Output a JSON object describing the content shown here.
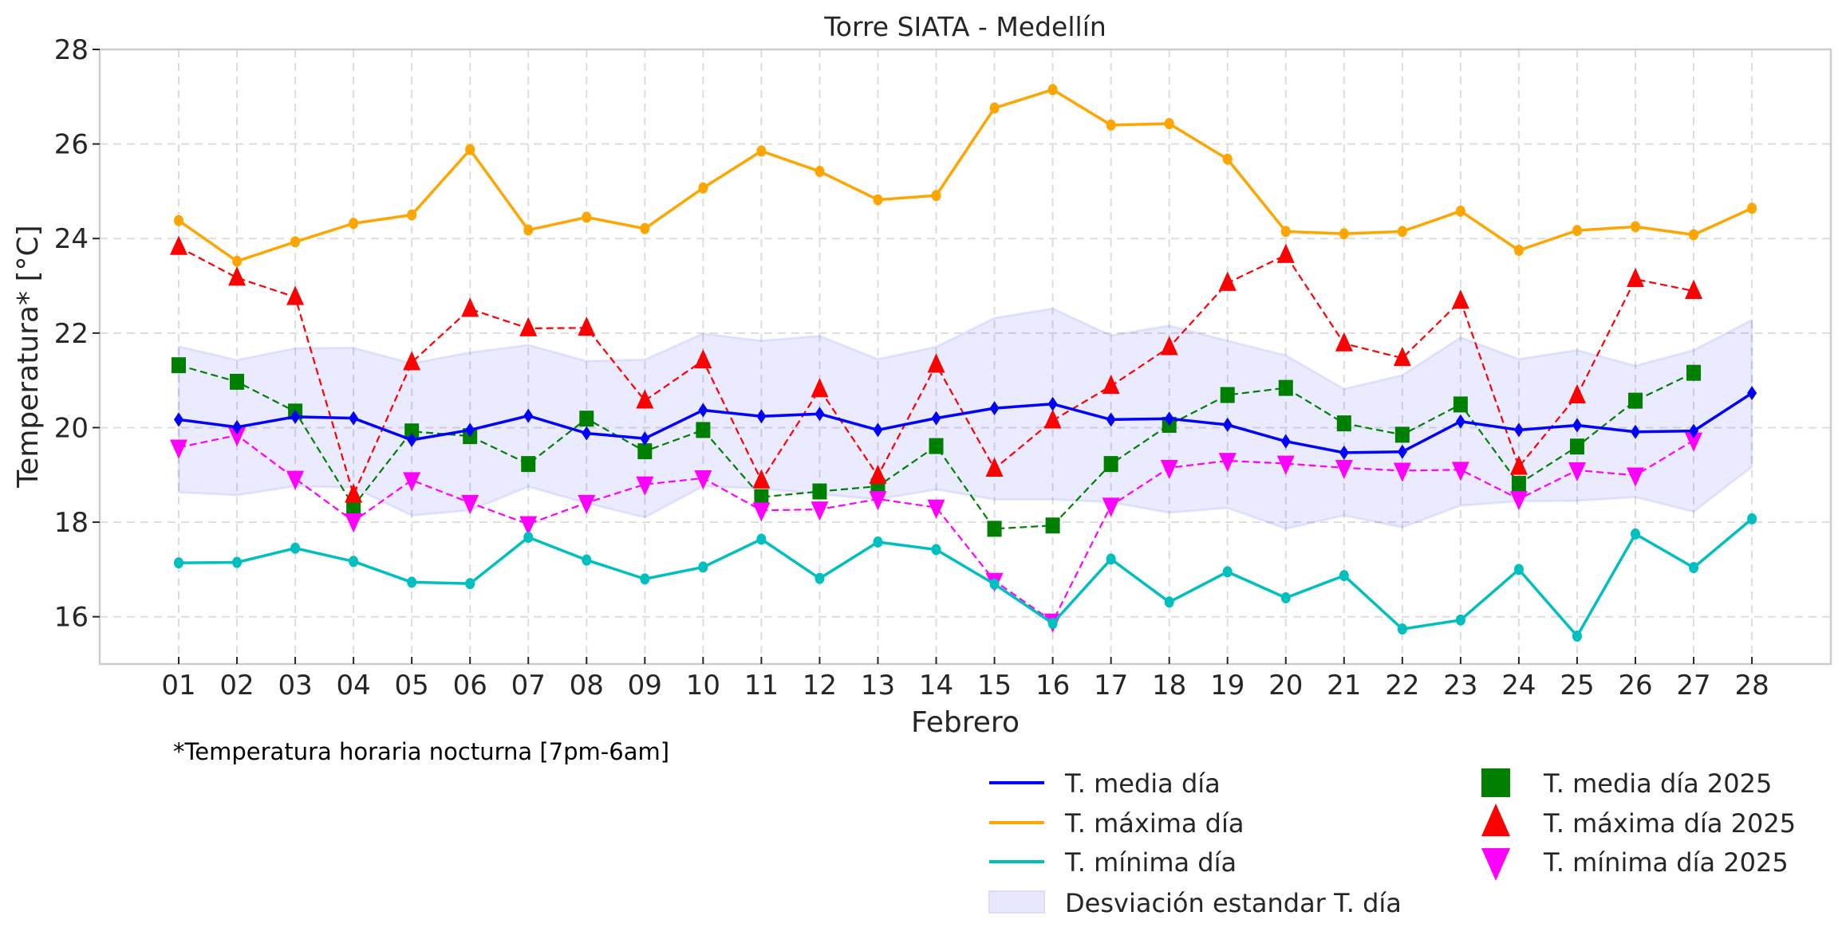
{
  "chart_data": {
    "type": "line",
    "title": "Torre SIATA - Medellín",
    "xlabel": "Febrero",
    "ylabel": "Temperatura* [°C]",
    "footnote": "*Temperatura horaria nocturna [7pm-6am]",
    "ylim": [
      15,
      28
    ],
    "xlim": [
      -0.35,
      28.35
    ],
    "yticks": [
      16,
      18,
      20,
      22,
      24,
      26,
      28
    ],
    "grid": true,
    "legend_position": "bottom-right (below axes)",
    "categories": [
      "01",
      "02",
      "03",
      "04",
      "05",
      "06",
      "07",
      "08",
      "09",
      "10",
      "11",
      "12",
      "13",
      "14",
      "15",
      "16",
      "17",
      "18",
      "19",
      "20",
      "21",
      "22",
      "23",
      "24",
      "25",
      "26",
      "27",
      "28"
    ],
    "std_band": {
      "name": "Desviación estandar T. día",
      "color": "#0000ff",
      "upper": [
        21.72,
        21.43,
        21.68,
        21.69,
        21.36,
        21.59,
        21.75,
        21.41,
        21.44,
        21.99,
        21.84,
        21.94,
        21.45,
        21.71,
        22.32,
        22.52,
        21.95,
        22.16,
        21.84,
        21.53,
        20.82,
        21.11,
        21.91,
        21.45,
        21.64,
        21.31,
        21.64,
        22.28
      ],
      "lower": [
        18.63,
        18.57,
        18.76,
        18.73,
        18.14,
        18.25,
        18.75,
        18.4,
        18.1,
        18.76,
        18.71,
        18.59,
        18.48,
        18.69,
        18.48,
        18.48,
        18.42,
        18.2,
        18.3,
        17.86,
        18.14,
        17.89,
        18.35,
        18.44,
        18.45,
        18.53,
        18.22,
        19.17
      ]
    },
    "series": [
      {
        "name": "T. media día",
        "color": "#0000ff",
        "style": "solid",
        "marker": "diamond",
        "values": [
          20.17,
          20.01,
          20.23,
          20.2,
          19.74,
          19.95,
          20.25,
          19.88,
          19.77,
          20.37,
          20.24,
          20.29,
          19.95,
          20.2,
          20.41,
          20.5,
          20.17,
          20.19,
          20.06,
          19.71,
          19.47,
          19.49,
          20.13,
          19.95,
          20.05,
          19.91,
          19.93,
          20.73
        ]
      },
      {
        "name": "T. máxima día",
        "color": "#ffa500",
        "style": "solid",
        "marker": "circle",
        "values": [
          24.38,
          23.52,
          23.93,
          24.32,
          24.5,
          25.88,
          24.18,
          24.45,
          24.21,
          25.07,
          25.85,
          25.42,
          24.82,
          24.91,
          26.76,
          27.15,
          26.4,
          26.43,
          25.68,
          24.15,
          24.1,
          24.15,
          24.58,
          23.75,
          24.17,
          24.25,
          24.08,
          24.64
        ]
      },
      {
        "name": "T. mínima día",
        "color": "#00bfbf",
        "style": "solid",
        "marker": "circle",
        "values": [
          17.14,
          17.15,
          17.45,
          17.17,
          16.73,
          16.7,
          17.68,
          17.2,
          16.8,
          17.05,
          17.64,
          16.81,
          17.58,
          17.42,
          16.69,
          15.86,
          17.22,
          16.31,
          16.95,
          16.4,
          16.87,
          15.74,
          15.93,
          17.0,
          15.59,
          17.75,
          17.04,
          18.07
        ]
      },
      {
        "name": "T. media día 2025",
        "color": "#008000",
        "style": "dashed",
        "marker": "square",
        "values": [
          21.32,
          20.97,
          20.34,
          18.34,
          19.92,
          19.82,
          19.23,
          20.19,
          19.5,
          19.95,
          18.53,
          18.65,
          18.76,
          19.61,
          17.86,
          17.93,
          19.23,
          20.06,
          20.69,
          20.84,
          20.09,
          19.85,
          20.49,
          18.81,
          19.6,
          20.57,
          21.16,
          null
        ]
      },
      {
        "name": "T. máxima día 2025",
        "color": "#ff0000",
        "style": "dashed",
        "marker": "triangle-up",
        "values": [
          23.82,
          23.17,
          22.76,
          18.58,
          21.38,
          22.51,
          22.1,
          22.11,
          20.57,
          21.42,
          18.88,
          20.81,
          18.98,
          21.33,
          19.13,
          20.15,
          20.88,
          21.7,
          23.06,
          23.65,
          21.78,
          21.47,
          22.68,
          19.17,
          20.68,
          23.14,
          22.89,
          null
        ]
      },
      {
        "name": "T. mínima día 2025",
        "color": "#ff00ff",
        "style": "dashed",
        "marker": "triangle-down",
        "values": [
          19.58,
          19.84,
          18.92,
          18.02,
          18.89,
          18.41,
          17.96,
          18.41,
          18.8,
          18.93,
          18.25,
          18.27,
          18.49,
          18.31,
          16.76,
          15.9,
          18.35,
          19.15,
          19.3,
          19.24,
          19.15,
          19.09,
          19.11,
          18.49,
          19.1,
          18.99,
          19.73,
          null
        ]
      }
    ],
    "legend": [
      {
        "label": "T. media día",
        "kind": "line",
        "color": "#0000ff"
      },
      {
        "label": "T. máxima día",
        "kind": "line",
        "color": "#ffa500"
      },
      {
        "label": "T. mínima día",
        "kind": "line",
        "color": "#00bfbf"
      },
      {
        "label": "Desviación estandar T. día",
        "kind": "patch",
        "color": "#e8e8fd"
      },
      {
        "label": "T. media día 2025",
        "kind": "square",
        "color": "#008000"
      },
      {
        "label": "T. máxima día 2025",
        "kind": "triangle-up",
        "color": "#ff0000"
      },
      {
        "label": "T. mínima día 2025",
        "kind": "triangle-down",
        "color": "#ff00ff"
      }
    ]
  }
}
